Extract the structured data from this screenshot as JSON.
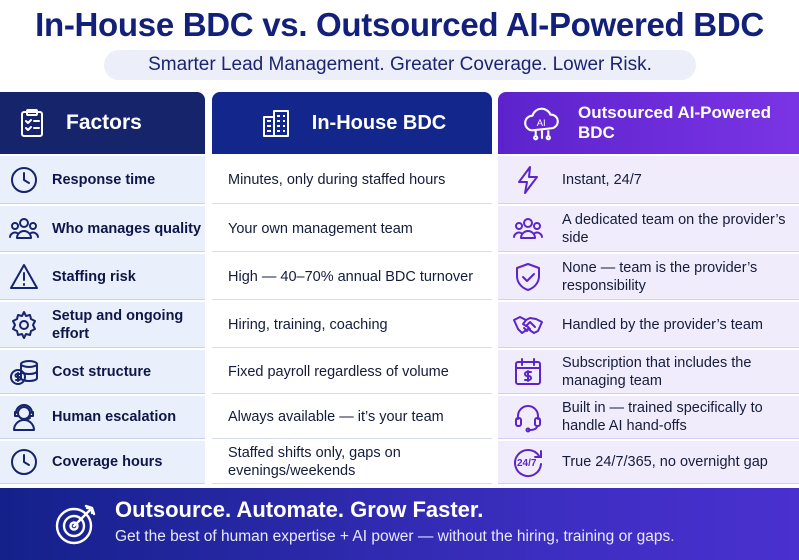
{
  "title": "In-House BDC vs. Outsourced AI-Powered BDC",
  "subtitle": "Smarter Lead Management. Greater Coverage. Lower Risk.",
  "headers": {
    "factors": {
      "label": "Factors",
      "icon": "clipboard-checklist-icon"
    },
    "inhouse": {
      "label": "In-House BDC",
      "icon": "office-building-icon"
    },
    "outsourced": {
      "label": "Outsourced AI-Powered BDC",
      "icon": "ai-cloud-icon"
    }
  },
  "rows": [
    {
      "factor": "Response time",
      "factor_icon": "clock-icon",
      "inhouse": "Minutes, only during staffed hours",
      "outsourced": "Instant, 24/7",
      "outsourced_icon": "lightning-icon"
    },
    {
      "factor": "Who manages quality",
      "factor_icon": "team-icon",
      "inhouse": "Your own management team",
      "outsourced": "A dedicated team on the provider’s side",
      "outsourced_icon": "team-icon"
    },
    {
      "factor": "Staffing risk",
      "factor_icon": "warning-icon",
      "inhouse": "High — 40–70% annual BDC turnover",
      "outsourced": "None — team is the provider’s responsibility",
      "outsourced_icon": "shield-check-icon"
    },
    {
      "factor": "Setup and ongoing effort",
      "factor_icon": "gear-icon",
      "inhouse": "Hiring, training, coaching",
      "outsourced": "Handled by the provider’s team",
      "outsourced_icon": "handshake-icon"
    },
    {
      "factor": "Cost structure",
      "factor_icon": "coins-icon",
      "inhouse": "Fixed payroll regardless of volume",
      "outsourced": "Subscription that includes the managing team",
      "outsourced_icon": "calendar-dollar-icon"
    },
    {
      "factor": "Human escalation",
      "factor_icon": "headset-agent-icon",
      "inhouse": "Always available — it’s your team",
      "outsourced": "Built in — trained specifically to handle AI hand-offs",
      "outsourced_icon": "headset-icon"
    },
    {
      "factor": "Coverage hours",
      "factor_icon": "clock-icon",
      "inhouse": "Staffed shifts only, gaps on evenings/weekends",
      "outsourced": "True 24/7/365, no overnight gap",
      "outsourced_icon": "24-7-icon"
    }
  ],
  "footer": {
    "headline": "Outsource. Automate. Grow Faster.",
    "subline": "Get the best of human expertise + AI power — without the hiring, training or gaps.",
    "icon": "target-arrow-icon"
  },
  "colors": {
    "navy": "#16246c",
    "blue": "#13268c",
    "purple": "#6a2bd8",
    "factor_bg": "#eaf0fb",
    "out_bg": "#f1ecfc"
  }
}
